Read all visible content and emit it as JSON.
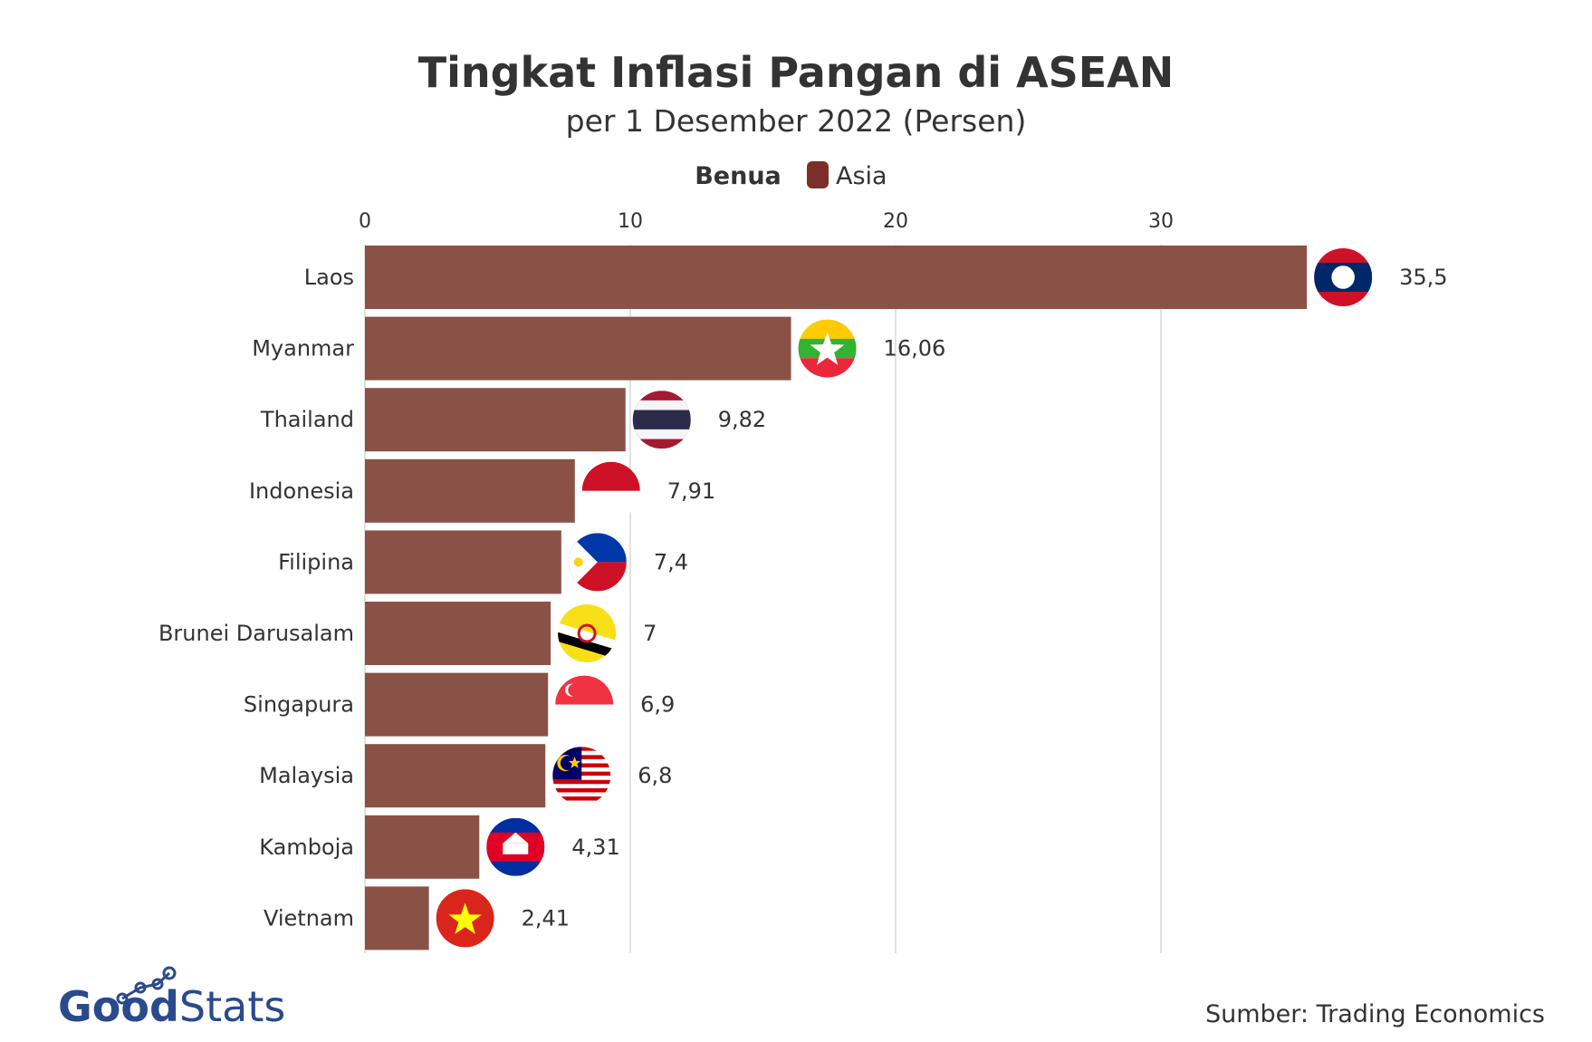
{
  "chart_data": {
    "type": "bar",
    "orientation": "horizontal",
    "title": "Tingkat Inflasi Pangan di ASEAN",
    "subtitle": "per 1 Desember 2022 (Persen)",
    "legend": {
      "title": "Benua",
      "entries": [
        "Asia"
      ],
      "placement": "top-center"
    },
    "categories": [
      "Laos",
      "Myanmar",
      "Thailand",
      "Indonesia",
      "Filipina",
      "Brunei Darusalam",
      "Singapura",
      "Malaysia",
      "Kamboja",
      "Vietnam"
    ],
    "values": [
      35.5,
      16.06,
      9.82,
      7.91,
      7.4,
      7,
      6.9,
      6.8,
      4.31,
      2.41
    ],
    "value_labels": [
      "35,5",
      "16,06",
      "9,82",
      "7,91",
      "7,4",
      "7",
      "6,9",
      "6,8",
      "4,31",
      "2,41"
    ],
    "flags": [
      "laos-flag",
      "myanmar-flag",
      "thailand-flag",
      "indonesia-flag",
      "philippines-flag",
      "brunei-flag",
      "singapore-flag",
      "malaysia-flag",
      "cambodia-flag",
      "vietnam-flag"
    ],
    "xticks": [
      0,
      10,
      20,
      30
    ],
    "xtick_labels": [
      "0",
      "10",
      "20",
      "30"
    ],
    "xlim": [
      0,
      40
    ],
    "axis_position": "top",
    "grid": true,
    "bar_color": "#8a5247",
    "legend_color": "#7a3028"
  },
  "source": "Sumber: Trading Economics",
  "brand": {
    "part1": "Good",
    "part2": "Stats",
    "color": "#2b4a8c"
  }
}
